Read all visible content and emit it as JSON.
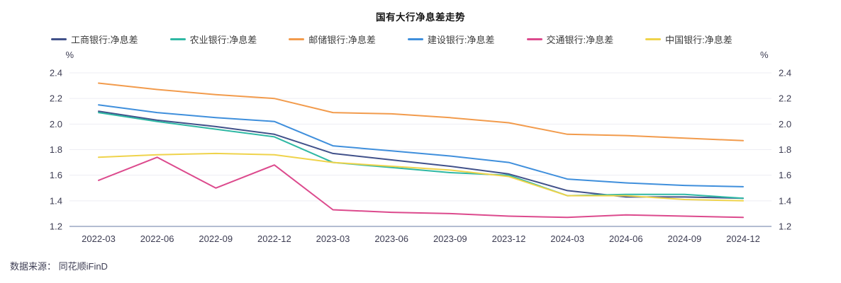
{
  "title": "国有大行净息差走势",
  "source_note": "数据来源： 同花顺iFinD",
  "colors": {
    "grid_line": "#ededf3",
    "axis_line": "#b3bdd2",
    "tick_text": "#3c3c52",
    "title_text": "#151515"
  },
  "chart_data": {
    "type": "line",
    "title": "国有大行净息差走势",
    "y_unit": "%",
    "ylim": [
      1.2,
      2.4
    ],
    "yticks": [
      1.2,
      1.4,
      1.6,
      1.8,
      2.0,
      2.2,
      2.4
    ],
    "grid": true,
    "legend_position": "top-left",
    "categories": [
      "2022-03",
      "2022-06",
      "2022-09",
      "2022-12",
      "2023-03",
      "2023-06",
      "2023-09",
      "2023-12",
      "2024-03",
      "2024-06",
      "2024-09",
      "2024-12"
    ],
    "series": [
      {
        "key": "icbc",
        "name": "工商银行:净息差",
        "color": "#41518a",
        "values": [
          2.1,
          2.03,
          1.98,
          1.92,
          1.77,
          1.72,
          1.67,
          1.61,
          1.48,
          1.43,
          1.43,
          1.42
        ]
      },
      {
        "key": "abc",
        "name": "农业银行:净息差",
        "color": "#2fb8a4",
        "values": [
          2.09,
          2.02,
          1.96,
          1.9,
          1.7,
          1.66,
          1.62,
          1.6,
          1.44,
          1.45,
          1.45,
          1.42
        ]
      },
      {
        "key": "psbc",
        "name": "邮储银行:净息差",
        "color": "#f29b4c",
        "values": [
          2.32,
          2.27,
          2.23,
          2.2,
          2.09,
          2.08,
          2.05,
          2.01,
          1.92,
          1.91,
          1.89,
          1.87
        ]
      },
      {
        "key": "ccb",
        "name": "建设银行:净息差",
        "color": "#3f8fdc",
        "values": [
          2.15,
          2.09,
          2.05,
          2.02,
          1.83,
          1.79,
          1.75,
          1.7,
          1.57,
          1.54,
          1.52,
          1.51
        ]
      },
      {
        "key": "bocom",
        "name": "交通银行:净息差",
        "color": "#dc4a8d",
        "values": [
          1.56,
          1.74,
          1.5,
          1.68,
          1.33,
          1.31,
          1.3,
          1.28,
          1.27,
          1.29,
          1.28,
          1.27
        ]
      },
      {
        "key": "boc",
        "name": "中国银行:净息差",
        "color": "#efd34b",
        "values": [
          1.74,
          1.76,
          1.77,
          1.76,
          1.7,
          1.67,
          1.64,
          1.59,
          1.44,
          1.44,
          1.41,
          1.4
        ]
      }
    ]
  }
}
